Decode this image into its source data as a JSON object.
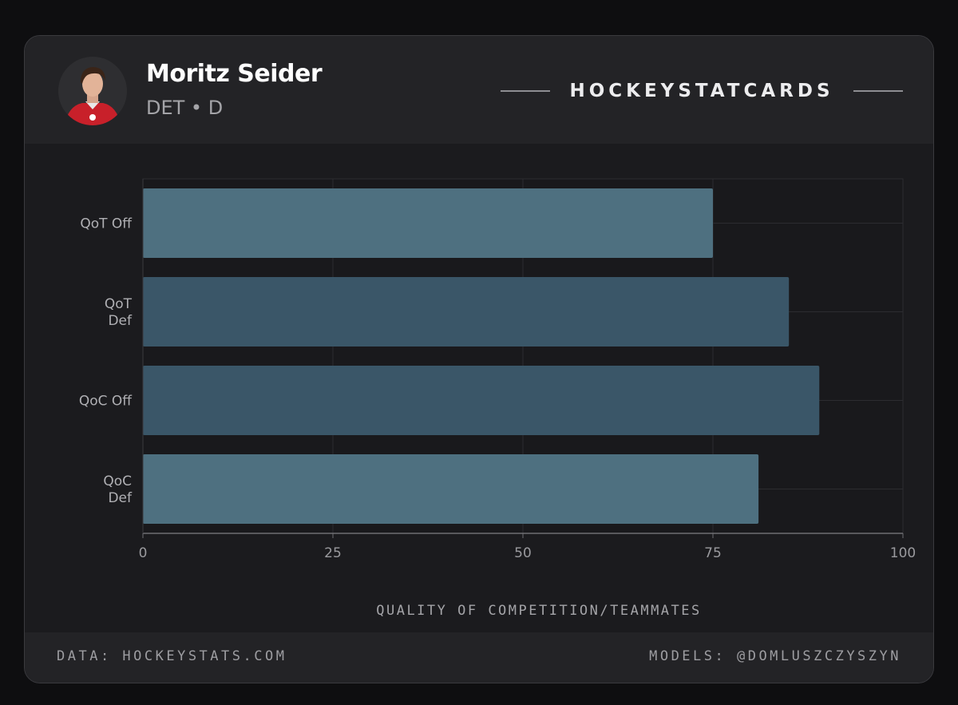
{
  "player": {
    "name": "Moritz Seider",
    "team_position": "DET • D"
  },
  "brand": {
    "label": "HOCKEYSTATCARDS"
  },
  "footer": {
    "data_source": "DATA: HOCKEYSTATS.COM",
    "models_credit": "MODELS: @DOMLUSZCZYSZYN"
  },
  "colors": {
    "background": "#0e0e10",
    "card": "#1b1b1e",
    "bar_light": "#4e7080",
    "bar_dark": "#3a5668",
    "grid": "#2c2c30"
  },
  "chart_data": {
    "type": "bar",
    "orientation": "horizontal",
    "categories": [
      [
        "QoT Off"
      ],
      [
        "QoT",
        "Def"
      ],
      [
        "QoC Off"
      ],
      [
        "QoC",
        "Def"
      ]
    ],
    "values": [
      75,
      85,
      89,
      81
    ],
    "bar_colors": [
      "#4e7080",
      "#3a5668",
      "#3a5668",
      "#4e7080"
    ],
    "xlim": [
      0,
      100
    ],
    "xticks": [
      0,
      25,
      50,
      75,
      100
    ],
    "xlabel": "QUALITY OF COMPETITION/TEAMMATES",
    "ylabel": "",
    "title": "",
    "grid": true
  }
}
